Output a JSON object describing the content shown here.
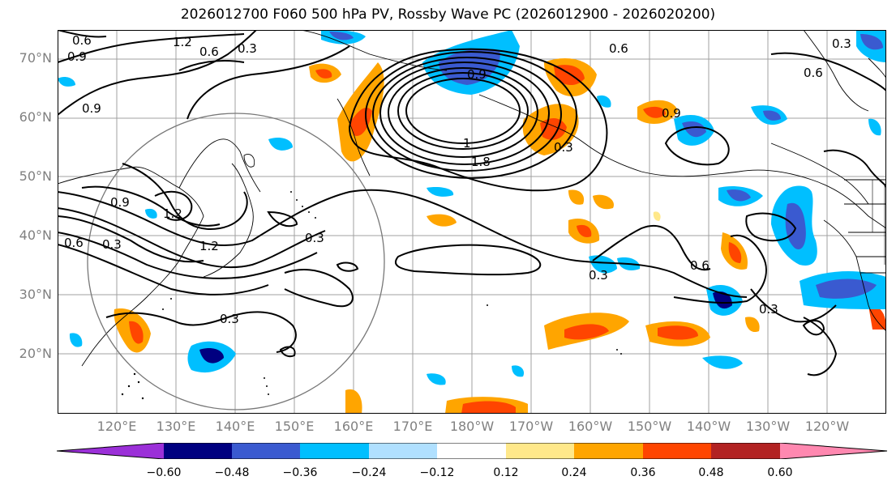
{
  "title": "2026012700 F060 500 hPa PV, Rossby Wave PC (2026012900 - 2026020200)",
  "lat_labels": [
    "70°N",
    "60°N",
    "50°N",
    "40°N",
    "30°N",
    "20°N"
  ],
  "lon_labels": [
    "120°E",
    "130°E",
    "140°E",
    "150°E",
    "160°E",
    "170°E",
    "180°W",
    "170°W",
    "160°W",
    "150°W",
    "140°W",
    "130°W",
    "120°W"
  ],
  "colorbar": {
    "ticks": [
      "−0.60",
      "−0.48",
      "−0.36",
      "−0.24",
      "−0.12",
      "0.12",
      "0.24",
      "0.36",
      "0.48",
      "0.60"
    ],
    "colors": [
      "#9b30d8",
      "#000080",
      "#3a5ad0",
      "#00bfff",
      "#b0e0ff",
      "#ffffff",
      "#ffe88a",
      "#ffa500",
      "#ff4500",
      "#b22222",
      "#ff88b0"
    ]
  },
  "contour_labels": {
    "a": "0.6",
    "b": "1.2",
    "c": "0.6",
    "d": "0.3",
    "e": "0.9",
    "f": "0.9",
    "g": "0.9",
    "h": "1.2",
    "i": "0.6",
    "j": "0.3",
    "k": "1.2",
    "l": "0.3",
    "m": "0.3",
    "n": "0.6",
    "o": "0.9",
    "p": "1.8",
    "q": "1",
    "r": "0.3",
    "s": "0.6",
    "t": "0.9",
    "u": "0.3",
    "v": "0.6",
    "w": "0.3",
    "x": "0.3"
  },
  "colors": {
    "contour": "#000000",
    "grid": "#a0a0a0",
    "label": "#808080"
  }
}
